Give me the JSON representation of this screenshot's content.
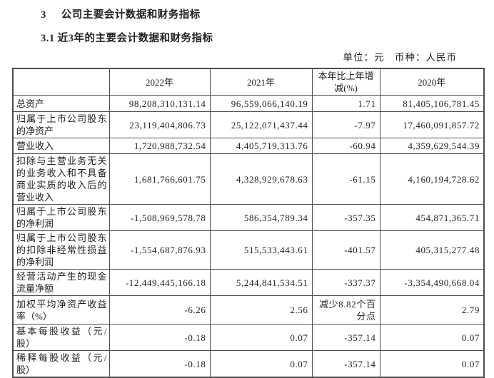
{
  "headings": {
    "section_number": "3",
    "section_title": "公司主要会计数据和财务指标",
    "subsection_title": "3.1 近3年的主要会计数据和财务指标",
    "unit_note": "单位：元　币种：人民币"
  },
  "colors": {
    "text": "#1f1f1f",
    "border": "#4d4d4d",
    "background": "#ffffff"
  },
  "table": {
    "columns": [
      "",
      "2022年",
      "2021年",
      "本年比上年增减(%)",
      "2020年"
    ],
    "rows": [
      {
        "label": "总资产",
        "y2022": "98,208,310,131.14",
        "y2021": "96,559,066,140.19",
        "change": "1.71",
        "y2020": "81,405,106,781.45"
      },
      {
        "label": "归属于上市公司股东的净资产",
        "y2022": "23,119,404,806.73",
        "y2021": "25,122,071,437.44",
        "change": "-7.97",
        "y2020": "17,460,091,857.72"
      },
      {
        "label": "营业收入",
        "y2022": "1,720,988,732.54",
        "y2021": "4,405,719,313.76",
        "change": "-60.94",
        "y2020": "4,359,629,544.39"
      },
      {
        "label": "扣除与主营业务无关的业务收入和不具备商业实质的收入后的营业收入",
        "y2022": "1,681,766,601.75",
        "y2021": "4,328,929,678.63",
        "change": "-61.15",
        "y2020": "4,160,194,728.62"
      },
      {
        "label": "归属于上市公司股东的净利润",
        "y2022": "-1,508,969,578.78",
        "y2021": "586,354,789.34",
        "change": "-357.35",
        "y2020": "454,871,365.71"
      },
      {
        "label": "归属于上市公司股东的扣除非经常性损益的净利润",
        "y2022": "-1,554,687,876.93",
        "y2021": "515,533,443.61",
        "change": "-401.57",
        "y2020": "405,315,277.48"
      },
      {
        "label": "经营活动产生的现金流量净额",
        "y2022": "-12,449,445,166.18",
        "y2021": "5,244,841,534.51",
        "change": "-337.37",
        "y2020": "-3,354,490,668.04"
      },
      {
        "label": "加权平均净资产收益率（%）",
        "y2022": "-6.26",
        "y2021": "2.56",
        "change": "减少8.82个百分点",
        "y2020": "2.79"
      },
      {
        "label": "基本每股收益（元/股）",
        "y2022": "-0.18",
        "y2021": "0.07",
        "change": "-357.14",
        "y2020": "0.07"
      },
      {
        "label": "稀释每股收益（元/股）",
        "y2022": "-0.18",
        "y2021": "0.07",
        "change": "-357.14",
        "y2020": "0.07"
      }
    ]
  }
}
